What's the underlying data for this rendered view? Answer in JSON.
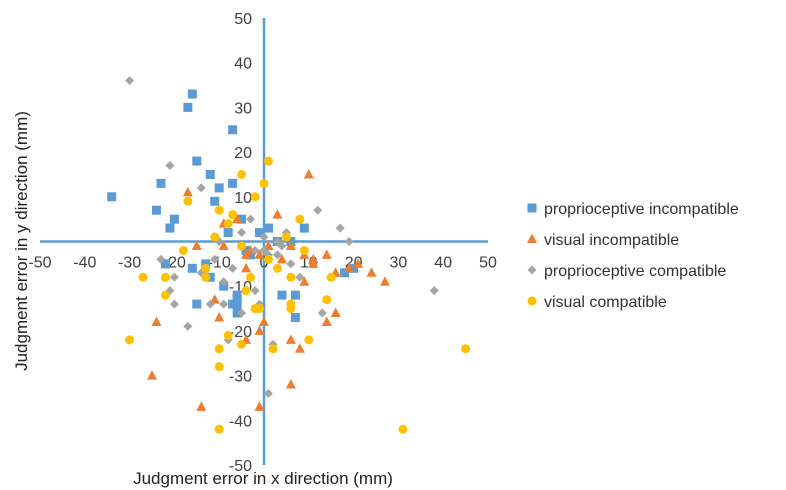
{
  "chart_data": {
    "type": "scatter",
    "title": "",
    "xlabel": "Judgment error in x direction (mm)",
    "ylabel": "Judgment error in y direction (mm)",
    "xlim": [
      -50,
      50
    ],
    "ylim": [
      -50,
      50
    ],
    "xticks": [
      -50,
      -40,
      -30,
      -20,
      -10,
      0,
      10,
      20,
      30,
      40,
      50
    ],
    "yticks": [
      -50,
      -40,
      -30,
      -20,
      -10,
      10,
      20,
      30,
      40,
      50
    ],
    "grid": false,
    "legend_position": "right",
    "axis_color": "#5b9bd5",
    "series": [
      {
        "name": "proprioceptive incompatible",
        "marker": "square",
        "color": "#5b9bd5",
        "points": [
          [
            -34,
            10
          ],
          [
            -23,
            13
          ],
          [
            -24,
            7
          ],
          [
            -20,
            5
          ],
          [
            -17,
            30
          ],
          [
            -16,
            33
          ],
          [
            -11,
            9
          ],
          [
            -12,
            15
          ],
          [
            -15,
            18
          ],
          [
            -7,
            13
          ],
          [
            -7,
            25
          ],
          [
            -8,
            2
          ],
          [
            -10,
            12
          ],
          [
            -5,
            5
          ],
          [
            -21,
            3
          ],
          [
            -22,
            -5
          ],
          [
            -16,
            -6
          ],
          [
            -15,
            -14
          ],
          [
            -13,
            -5
          ],
          [
            -7,
            -14
          ],
          [
            -6,
            -16
          ],
          [
            -6,
            -12
          ],
          [
            -6,
            -14
          ],
          [
            -6,
            -13
          ],
          [
            -12,
            -8
          ],
          [
            -9,
            -10
          ],
          [
            -3,
            -3
          ],
          [
            1,
            3
          ],
          [
            4,
            -12
          ],
          [
            7,
            -12
          ],
          [
            7,
            -17
          ],
          [
            9,
            3
          ],
          [
            18,
            -7
          ],
          [
            20,
            -6
          ],
          [
            -4,
            -2
          ],
          [
            3,
            0
          ],
          [
            6,
            0
          ],
          [
            -1,
            2
          ]
        ]
      },
      {
        "name": "visual incompatible",
        "marker": "triangle",
        "color": "#ed7d31",
        "points": [
          [
            -17,
            11
          ],
          [
            -15,
            -1
          ],
          [
            -9,
            4
          ],
          [
            -6,
            5
          ],
          [
            -4,
            -3
          ],
          [
            -1,
            -3
          ],
          [
            -3,
            -2
          ],
          [
            1,
            -1
          ],
          [
            3,
            6
          ],
          [
            6,
            -1
          ],
          [
            9,
            -3
          ],
          [
            9,
            -9
          ],
          [
            10,
            15
          ],
          [
            11,
            -4
          ],
          [
            14,
            -3
          ],
          [
            16,
            -7
          ],
          [
            19,
            -6
          ],
          [
            21,
            -5
          ],
          [
            24,
            -7
          ],
          [
            27,
            -9
          ],
          [
            -11,
            -13
          ],
          [
            -10,
            -17
          ],
          [
            -4,
            -22
          ],
          [
            -1,
            -20
          ],
          [
            0,
            -18
          ],
          [
            6,
            -22
          ],
          [
            8,
            -24
          ],
          [
            14,
            -18
          ],
          [
            16,
            -16
          ],
          [
            -25,
            -30
          ],
          [
            -24,
            -18
          ],
          [
            -14,
            -37
          ],
          [
            -1,
            -37
          ],
          [
            6,
            -32
          ],
          [
            -9,
            -1
          ],
          [
            -4,
            -6
          ],
          [
            4,
            -4
          ],
          [
            11,
            -5
          ]
        ]
      },
      {
        "name": "proprioceptive compatible",
        "marker": "diamond",
        "color": "#a5a5a5",
        "points": [
          [
            -30,
            36
          ],
          [
            -21,
            17
          ],
          [
            -14,
            12
          ],
          [
            -5,
            2
          ],
          [
            -3,
            5
          ],
          [
            0,
            -2
          ],
          [
            1,
            -3
          ],
          [
            3,
            0
          ],
          [
            4,
            -1
          ],
          [
            6,
            -5
          ],
          [
            8,
            -8
          ],
          [
            12,
            7
          ],
          [
            13,
            -16
          ],
          [
            17,
            3
          ],
          [
            19,
            0
          ],
          [
            38,
            -11
          ],
          [
            -21,
            -11
          ],
          [
            -20,
            -14
          ],
          [
            -17,
            -19
          ],
          [
            -12,
            -14
          ],
          [
            -9,
            -9
          ],
          [
            -9,
            -14
          ],
          [
            -8,
            -22
          ],
          [
            -5,
            -16
          ],
          [
            -2,
            -11
          ],
          [
            -1,
            -14
          ],
          [
            2,
            -23
          ],
          [
            3,
            -3
          ],
          [
            1,
            -34
          ],
          [
            -23,
            -4
          ],
          [
            -20,
            -8
          ],
          [
            -14,
            -7
          ],
          [
            -11,
            -4
          ],
          [
            -7,
            -6
          ],
          [
            -2,
            -2
          ],
          [
            0,
            1
          ],
          [
            5,
            2
          ],
          [
            -10,
            0
          ]
        ]
      },
      {
        "name": "visual compatible",
        "marker": "circle",
        "color": "#ffc000",
        "points": [
          [
            -17,
            9
          ],
          [
            -13,
            -6
          ],
          [
            -13,
            -8
          ],
          [
            -11,
            1
          ],
          [
            -10,
            7
          ],
          [
            -8,
            4
          ],
          [
            -7,
            6
          ],
          [
            -5,
            15
          ],
          [
            -2,
            10
          ],
          [
            0,
            13
          ],
          [
            1,
            18
          ],
          [
            5,
            1
          ],
          [
            6,
            -15
          ],
          [
            8,
            5
          ],
          [
            9,
            -2
          ],
          [
            -30,
            -22
          ],
          [
            -27,
            -8
          ],
          [
            -22,
            -8
          ],
          [
            -22,
            -12
          ],
          [
            -18,
            -2
          ],
          [
            -10,
            -24
          ],
          [
            -8,
            -21
          ],
          [
            -5,
            -23
          ],
          [
            -4,
            -11
          ],
          [
            -3,
            -8
          ],
          [
            -1,
            -15
          ],
          [
            -10,
            -28
          ],
          [
            -10,
            -42
          ],
          [
            2,
            -24
          ],
          [
            10,
            -22
          ],
          [
            14,
            -13
          ],
          [
            15,
            -8
          ],
          [
            31,
            -42
          ],
          [
            45,
            -24
          ],
          [
            -5,
            -1
          ],
          [
            1,
            -4
          ],
          [
            3,
            -6
          ],
          [
            6,
            -8
          ],
          [
            -2,
            -15
          ],
          [
            6,
            -14
          ]
        ]
      }
    ]
  }
}
